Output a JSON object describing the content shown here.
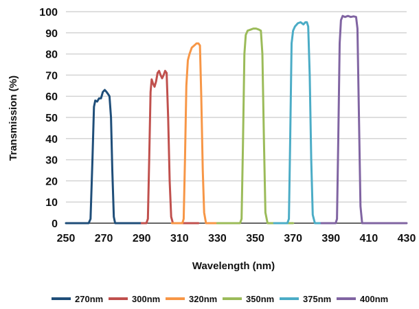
{
  "chart_data": {
    "type": "line",
    "title": "",
    "xlabel": "Wavelength (nm)",
    "ylabel": "Transmission (%)",
    "xlim": [
      250,
      430
    ],
    "ylim": [
      0,
      100
    ],
    "x_ticks": [
      250,
      270,
      290,
      310,
      330,
      350,
      370,
      390,
      410,
      430
    ],
    "y_ticks": [
      0,
      10,
      20,
      30,
      40,
      50,
      60,
      70,
      80,
      90,
      100
    ],
    "grid": "horizontal",
    "legend": "bottom",
    "series": [
      {
        "name": "270nm",
        "color": "#1f4e79",
        "points": [
          [
            250,
            0
          ],
          [
            262,
            0
          ],
          [
            263,
            2
          ],
          [
            264,
            30
          ],
          [
            264.8,
            55
          ],
          [
            265.5,
            58
          ],
          [
            266.5,
            57.5
          ],
          [
            267.5,
            59
          ],
          [
            268.5,
            59
          ],
          [
            269.5,
            62
          ],
          [
            270.5,
            63
          ],
          [
            271.5,
            62
          ],
          [
            272.3,
            61
          ],
          [
            273,
            60
          ],
          [
            273.8,
            50
          ],
          [
            274.5,
            25
          ],
          [
            275.3,
            3
          ],
          [
            276,
            0
          ],
          [
            290,
            0
          ]
        ]
      },
      {
        "name": "300nm",
        "color": "#c0504d",
        "points": [
          [
            290,
            0
          ],
          [
            292.5,
            0
          ],
          [
            293.3,
            2
          ],
          [
            294,
            30
          ],
          [
            294.7,
            62
          ],
          [
            295.3,
            68
          ],
          [
            296,
            66
          ],
          [
            296.8,
            64.5
          ],
          [
            297.6,
            67
          ],
          [
            298.4,
            71
          ],
          [
            299.2,
            72
          ],
          [
            300,
            70
          ],
          [
            300.8,
            68.5
          ],
          [
            301.6,
            70
          ],
          [
            302.4,
            72
          ],
          [
            303.2,
            71
          ],
          [
            304,
            50
          ],
          [
            304.8,
            20
          ],
          [
            305.6,
            3
          ],
          [
            306.5,
            0
          ],
          [
            320,
            0
          ]
        ]
      },
      {
        "name": "320nm",
        "color": "#f79646",
        "points": [
          [
            306,
            0
          ],
          [
            311.5,
            0
          ],
          [
            312.2,
            2
          ],
          [
            312.9,
            30
          ],
          [
            313.6,
            65
          ],
          [
            314.4,
            77
          ],
          [
            315.3,
            80
          ],
          [
            316.5,
            83
          ],
          [
            317.8,
            84
          ],
          [
            319,
            85
          ],
          [
            320,
            85
          ],
          [
            320.8,
            84
          ],
          [
            321.5,
            60
          ],
          [
            322.3,
            25
          ],
          [
            323,
            5
          ],
          [
            324,
            0
          ],
          [
            340,
            0
          ]
        ]
      },
      {
        "name": "350nm",
        "color": "#9bbb59",
        "points": [
          [
            330,
            0
          ],
          [
            342,
            0
          ],
          [
            342.8,
            2
          ],
          [
            343.5,
            35
          ],
          [
            344.3,
            80
          ],
          [
            345,
            89
          ],
          [
            346,
            91
          ],
          [
            347.5,
            91.5
          ],
          [
            349,
            92
          ],
          [
            350.5,
            92
          ],
          [
            352,
            91.5
          ],
          [
            353,
            91
          ],
          [
            353.8,
            80
          ],
          [
            354.6,
            40
          ],
          [
            355.4,
            5
          ],
          [
            356.5,
            0
          ],
          [
            370,
            0
          ]
        ]
      },
      {
        "name": "375nm",
        "color": "#4bacc6",
        "points": [
          [
            360,
            0
          ],
          [
            367,
            0
          ],
          [
            367.8,
            2
          ],
          [
            368.5,
            40
          ],
          [
            369.2,
            85
          ],
          [
            370,
            91
          ],
          [
            371,
            93
          ],
          [
            372.5,
            94.5
          ],
          [
            374,
            95
          ],
          [
            375.5,
            94
          ],
          [
            376.5,
            95
          ],
          [
            377.3,
            95
          ],
          [
            378,
            93
          ],
          [
            378.8,
            70
          ],
          [
            379.6,
            30
          ],
          [
            380.4,
            4
          ],
          [
            381.5,
            0
          ],
          [
            392,
            0
          ]
        ]
      },
      {
        "name": "400nm",
        "color": "#8064a2",
        "points": [
          [
            385,
            0
          ],
          [
            392.5,
            0
          ],
          [
            393.2,
            2
          ],
          [
            393.9,
            40
          ],
          [
            394.6,
            85
          ],
          [
            395.3,
            96
          ],
          [
            396.2,
            98
          ],
          [
            397.5,
            97.5
          ],
          [
            399,
            98
          ],
          [
            400.5,
            97.5
          ],
          [
            402,
            97.8
          ],
          [
            403.3,
            97.5
          ],
          [
            404,
            92
          ],
          [
            404.8,
            50
          ],
          [
            405.6,
            8
          ],
          [
            406.5,
            0
          ],
          [
            430,
            0
          ]
        ]
      }
    ]
  }
}
